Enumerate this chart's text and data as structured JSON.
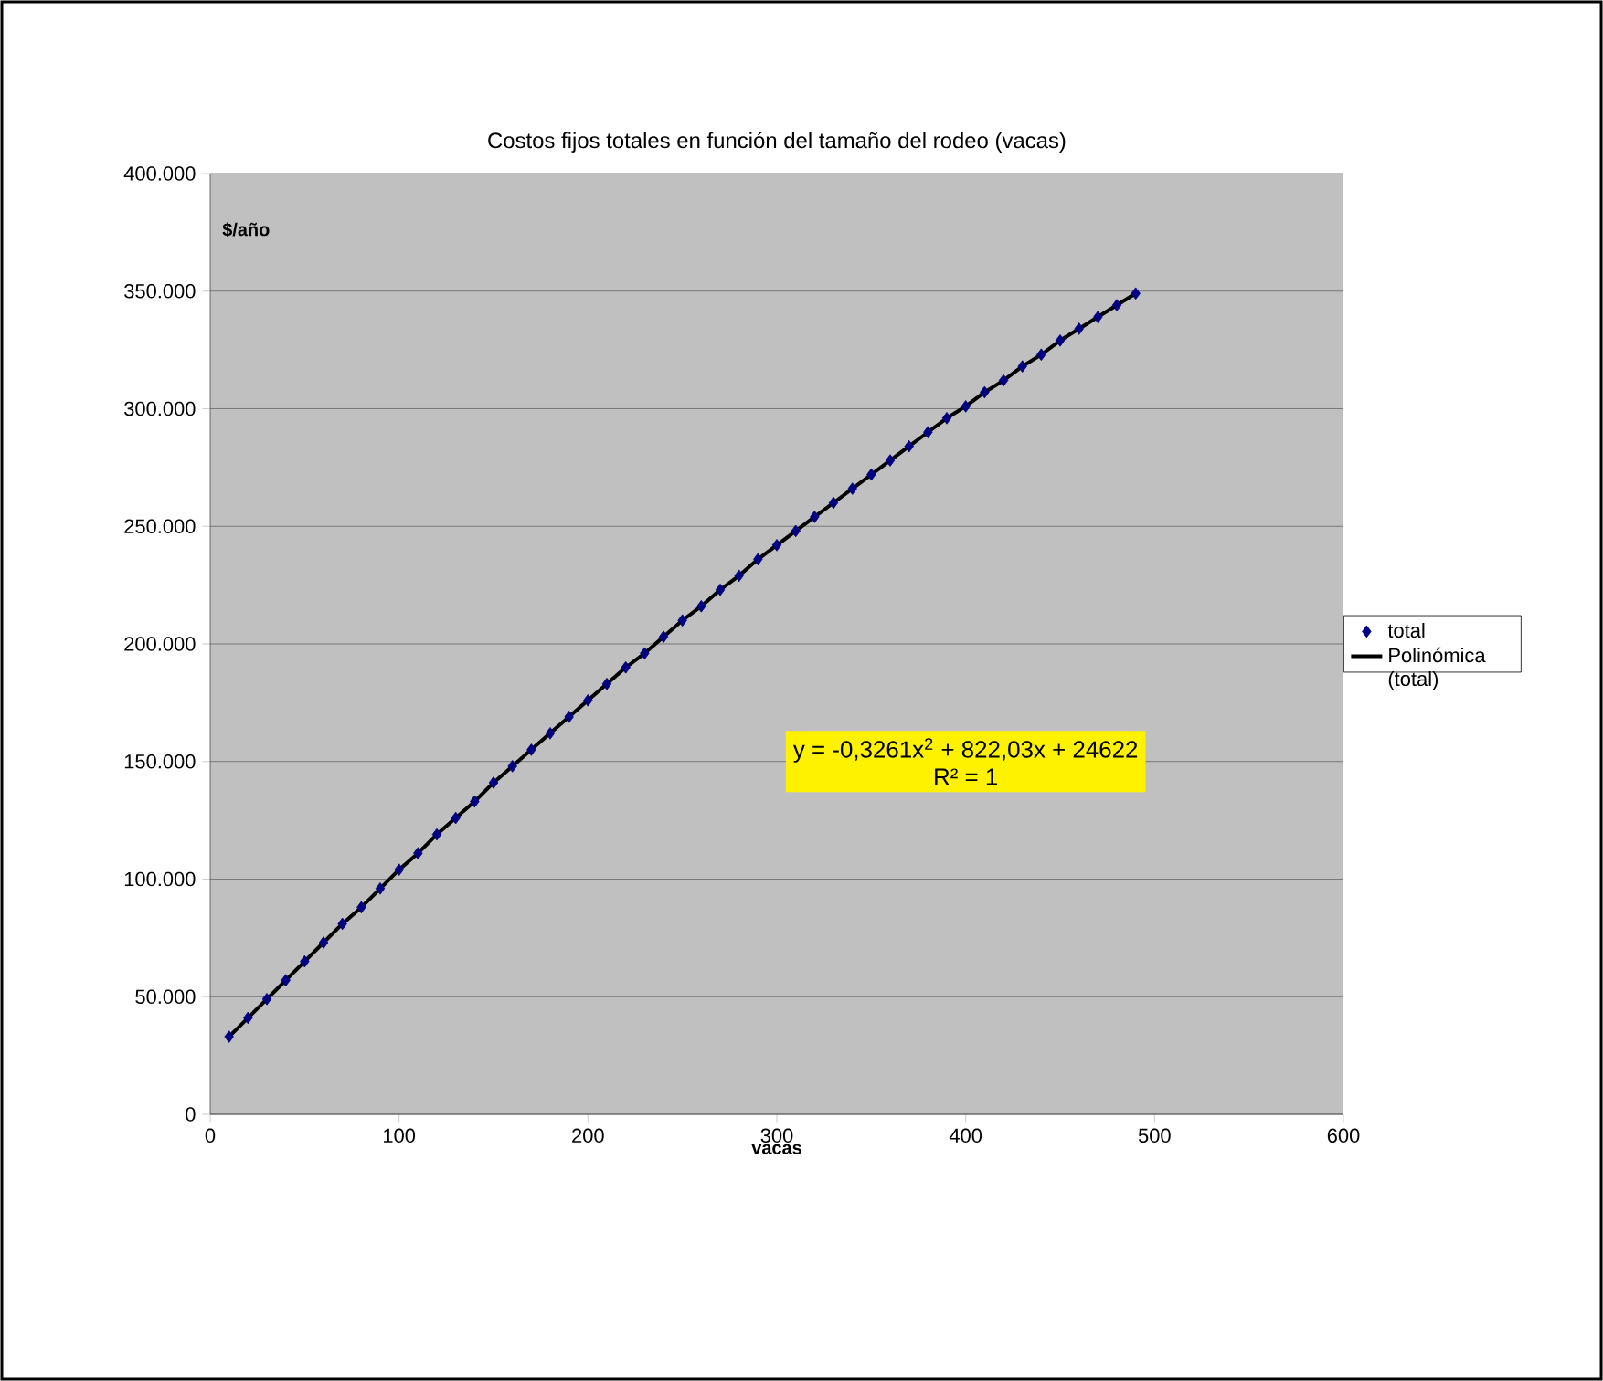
{
  "chart_data": {
    "type": "scatter",
    "title": "Costos fijos totales en función del tamaño del rodeo (vacas)",
    "xlabel": "vacas",
    "ylabel": "$/año",
    "x": [
      10,
      20,
      30,
      40,
      50,
      60,
      70,
      80,
      90,
      100,
      110,
      120,
      130,
      140,
      150,
      160,
      170,
      180,
      190,
      200,
      210,
      220,
      230,
      240,
      250,
      260,
      270,
      280,
      290,
      300,
      310,
      320,
      330,
      340,
      350,
      360,
      370,
      380,
      390,
      400,
      410,
      420,
      430,
      440,
      450,
      460,
      470,
      480,
      490
    ],
    "series": [
      {
        "name": "total",
        "color": "#000080",
        "marker": "diamond",
        "values": [
          33000,
          41000,
          49000,
          57000,
          65000,
          73000,
          81000,
          88000,
          96000,
          104000,
          111000,
          119000,
          126000,
          133000,
          141000,
          148000,
          155000,
          162000,
          169000,
          176000,
          183000,
          190000,
          196000,
          203000,
          210000,
          216000,
          223000,
          229000,
          236000,
          242000,
          248000,
          254000,
          260000,
          266000,
          272000,
          278000,
          284000,
          290000,
          296000,
          301000,
          307000,
          312000,
          318000,
          323000,
          329000,
          334000,
          339000,
          344000,
          349000
        ]
      },
      {
        "name": "Polinómica (total)",
        "type": "line",
        "color": "#000000",
        "line_style": "solid",
        "x": [
          10,
          20,
          30,
          40,
          50,
          60,
          70,
          80,
          90,
          100,
          110,
          120,
          130,
          140,
          150,
          160,
          170,
          180,
          190,
          200,
          210,
          220,
          230,
          240,
          250,
          260,
          270,
          280,
          290,
          300,
          310,
          320,
          330,
          340,
          350,
          360,
          370,
          380,
          390,
          400,
          410,
          420,
          430,
          440,
          450,
          460,
          470,
          480,
          490
        ],
        "values": [
          33000,
          41000,
          49000,
          57000,
          65000,
          73000,
          81000,
          88000,
          96000,
          104000,
          111000,
          119000,
          126000,
          133000,
          141000,
          148000,
          155000,
          162000,
          169000,
          176000,
          183000,
          190000,
          196000,
          203000,
          210000,
          216000,
          223000,
          229000,
          236000,
          242000,
          248000,
          254000,
          260000,
          266000,
          272000,
          278000,
          284000,
          290000,
          296000,
          301000,
          307000,
          312000,
          318000,
          323000,
          329000,
          334000,
          339000,
          344000,
          349000
        ]
      }
    ],
    "xlim": [
      0,
      600
    ],
    "xticks": [
      0,
      100,
      200,
      300,
      400,
      500,
      600
    ],
    "ylim": [
      0,
      400000
    ],
    "yticks": [
      0,
      {
        "value": 50000,
        "label": "50.000"
      },
      {
        "value": 100000,
        "label": "100.000"
      },
      {
        "value": 150000,
        "label": "150.000"
      },
      {
        "value": 200000,
        "label": "200.000"
      },
      {
        "value": 250000,
        "label": "250.000"
      },
      {
        "value": 300000,
        "label": "300.000"
      },
      {
        "value": 350000,
        "label": "350.000"
      },
      {
        "value": 400000,
        "label": "400.000"
      }
    ],
    "grid": "y",
    "legend": "right",
    "annotations": [
      "y = -0,3261x$^{2}$ + 822,03x + 24622",
      "R² = 1"
    ]
  }
}
